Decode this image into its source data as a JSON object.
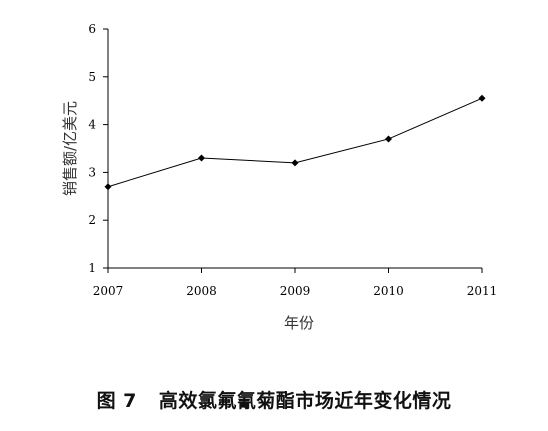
{
  "figure": {
    "number": "图 7",
    "title": "高效氯氟氰菊酯市场近年变化情况"
  },
  "chart_data": {
    "type": "line",
    "x": [
      "2007",
      "2008",
      "2009",
      "2010",
      "2011"
    ],
    "series": [
      {
        "values": [
          2.7,
          3.3,
          3.2,
          3.7,
          4.55
        ]
      }
    ],
    "xlabel": "年份",
    "ylabel": "销售额/亿美元",
    "ylim": [
      1,
      6
    ],
    "yticks": [
      1,
      2,
      3,
      4,
      5,
      6
    ],
    "grid": false,
    "marker": "diamond",
    "line_color": "#000000"
  }
}
